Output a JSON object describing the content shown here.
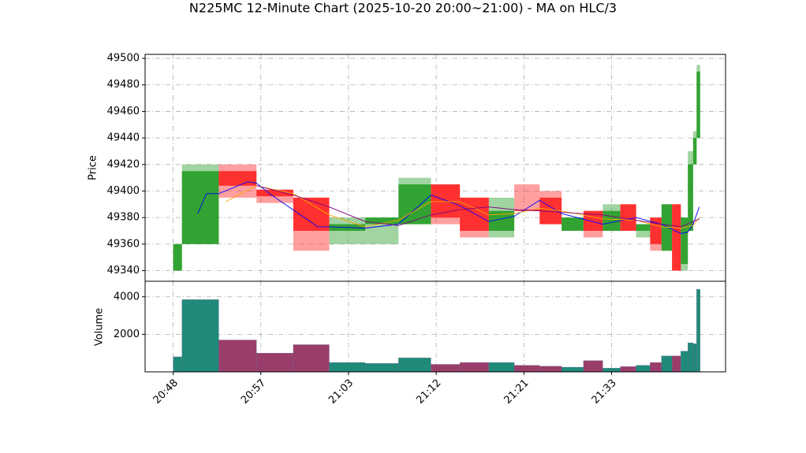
{
  "chart_data": {
    "type": "candlestick",
    "title": "N225MC 12-Minute Chart (2025-10-20 20:00~21:00) - MA on HLC/3",
    "ylabel": "Price",
    "volume_label": "Volume",
    "x": [
      0,
      1.0,
      5.2,
      9.5,
      13.7,
      17.8,
      21.9,
      25.7,
      29.4,
      32.7,
      36.0,
      38.9,
      41.8,
      44.3,
      46.8,
      49.0,
      51.0,
      52.8,
      54.4,
      55.7,
      56.9,
      57.9,
      58.7,
      59.3,
      59.7
    ],
    "open": [
      49340,
      49360,
      49415,
      49401,
      49395,
      49370,
      49375,
      49375,
      49405,
      49395,
      49370,
      49386,
      49395,
      49370,
      49385,
      49370,
      49390,
      49370,
      49380,
      49355,
      49390,
      49345,
      49370,
      49420,
      49440
    ],
    "high": [
      49360,
      49420,
      49420,
      49401,
      49395,
      49380,
      49380,
      49410,
      49405,
      49395,
      49395,
      49405,
      49400,
      49380,
      49385,
      49390,
      49390,
      49375,
      49380,
      49390,
      49390,
      49380,
      49430,
      49445,
      49495
    ],
    "low": [
      49340,
      49360,
      49395,
      49391,
      49355,
      49360,
      49360,
      49375,
      49375,
      49365,
      49365,
      49385,
      49375,
      49370,
      49365,
      49370,
      49370,
      49365,
      49355,
      49355,
      49340,
      49340,
      49370,
      49420,
      49440
    ],
    "close": [
      49360,
      49415,
      49404,
      49396,
      49370,
      49375,
      49380,
      49405,
      49380,
      49370,
      49385,
      49385,
      49375,
      49380,
      49370,
      49385,
      49370,
      49375,
      49360,
      49390,
      49340,
      49380,
      49420,
      49440,
      49490
    ],
    "volume": [
      800,
      3850,
      1700,
      1000,
      1450,
      500,
      450,
      750,
      400,
      500,
      500,
      350,
      300,
      250,
      600,
      200,
      280,
      350,
      500,
      850,
      850,
      1100,
      1550,
      1500,
      4400
    ],
    "up_color": "#2ca02c",
    "down_color": "#ff2a2a",
    "up_volume_color": "#1f8a78",
    "down_volume_color": "#9a3d6a",
    "moving_averages": [
      {
        "color": "#0000ff",
        "x": [
          2.8,
          3.8,
          5.2,
          8.5,
          9.5,
          11,
          16.5,
          18,
          21.9,
          25.7,
          29.4,
          32.7,
          36,
          38.9,
          41.8,
          44.3,
          49,
          52.8,
          55.7,
          57.9,
          58.7,
          59.3,
          60
        ],
        "values": [
          49383,
          49398,
          49398,
          49407,
          49406,
          49398,
          49373,
          49373,
          49372,
          49375,
          49397,
          49389,
          49377,
          49381,
          49393,
          49383,
          49375,
          49380,
          49375,
          49368,
          49369,
          49375,
          49388
        ]
      },
      {
        "color": "#ffa500",
        "x": [
          6,
          9.5,
          13.7,
          17.8,
          21.9,
          25.7,
          29.4,
          32.7,
          36,
          38.9,
          41.8,
          44.3,
          49,
          52.8,
          55.7,
          57.9,
          59.3,
          60
        ],
        "values": [
          49392,
          49404,
          49398,
          49382,
          49373,
          49378,
          49392,
          49392,
          49382,
          49383,
          49387,
          49385,
          49379,
          49378,
          49373,
          49372,
          49374,
          49380
        ]
      },
      {
        "color": "#800080",
        "x": [
          9.5,
          13.7,
          17.8,
          21.9,
          25.7,
          29.4,
          32.7,
          36,
          38.9,
          41.8,
          44.3,
          49,
          52.8,
          55.7,
          57.9,
          60
        ],
        "values": [
          49404,
          49397,
          49388,
          49377,
          49374,
          49382,
          49386,
          49388,
          49386,
          49385,
          49384,
          49382,
          49378,
          49375,
          49373,
          49379
        ]
      }
    ],
    "xlim": [
      -3.2,
      63
    ],
    "xticks": [
      {
        "value": 0,
        "label": "20:48"
      },
      {
        "value": 10,
        "label": "20:57"
      },
      {
        "value": 20,
        "label": "21:03"
      },
      {
        "value": 30,
        "label": "21:12"
      },
      {
        "value": 40,
        "label": "21:21"
      },
      {
        "value": 50,
        "label": "21:33"
      }
    ],
    "ylim": [
      49332,
      49503
    ],
    "yticks": [
      49340,
      49360,
      49380,
      49400,
      49420,
      49440,
      49460,
      49480,
      49500
    ],
    "volume_ylim": [
      0,
      4830
    ],
    "volume_yticks": [
      2000,
      4000
    ],
    "grid": true
  }
}
